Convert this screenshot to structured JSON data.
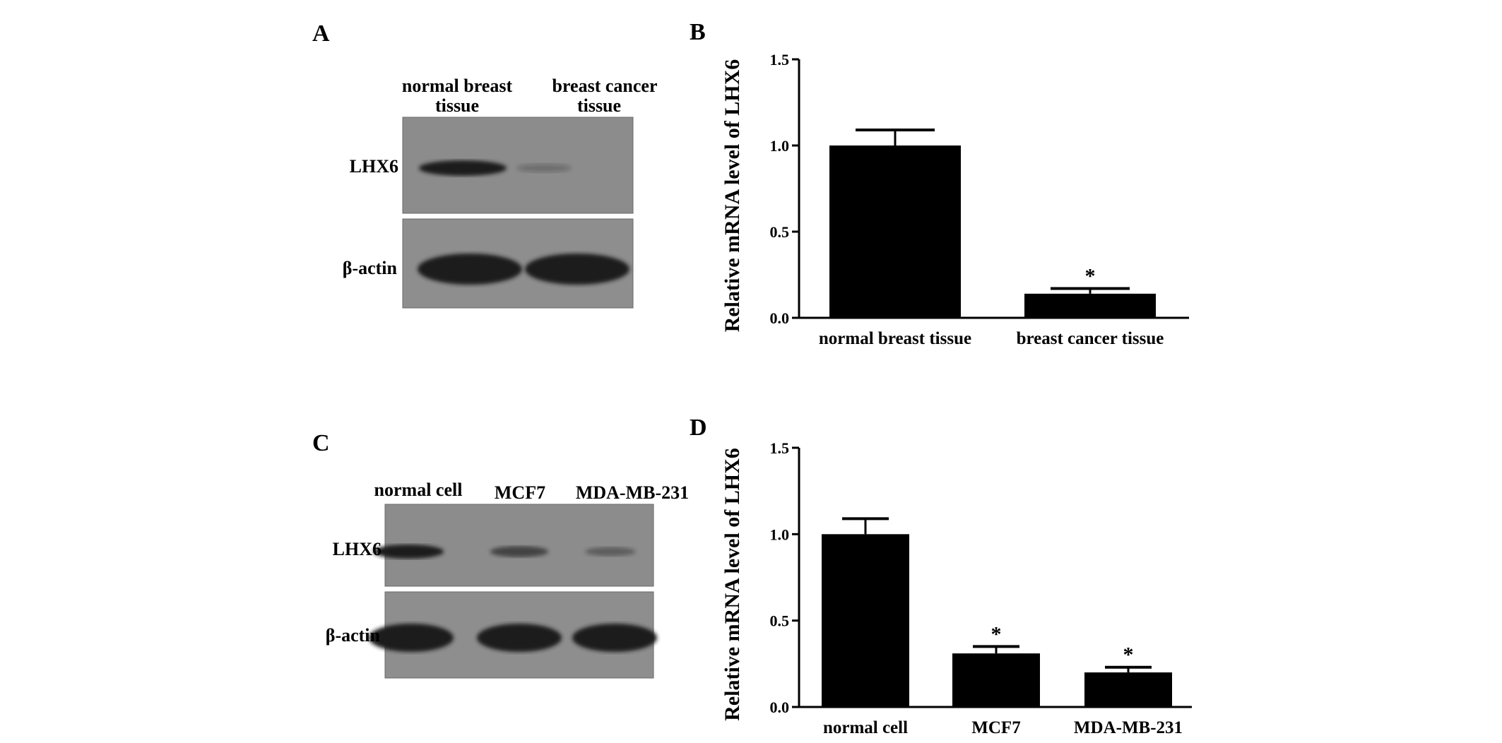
{
  "panels": {
    "A": {
      "letter": "A",
      "lanes": [
        {
          "line1": "normal breast",
          "line2": "tissue"
        },
        {
          "line1": "breast cancer",
          "line2": "tissue"
        }
      ],
      "rows": [
        "LHX6",
        "β-actin"
      ],
      "band_intensity": {
        "LHX6": [
          1.0,
          0.15
        ],
        "β-actin": [
          1.0,
          1.0
        ]
      }
    },
    "B": {
      "letter": "B"
    },
    "C": {
      "letter": "C",
      "lanes": [
        {
          "line1": "normal cell"
        },
        {
          "line1": "MCF7"
        },
        {
          "line1": "MDA-MB-231"
        }
      ],
      "rows": [
        "LHX6",
        "β-actin"
      ],
      "band_intensity": {
        "LHX6": [
          1.0,
          0.6,
          0.35
        ],
        "β-actin": [
          1.0,
          1.0,
          1.0
        ]
      }
    },
    "D": {
      "letter": "D"
    }
  },
  "chart_data": [
    {
      "panel": "B",
      "type": "bar",
      "categories": [
        "normal breast tissue",
        "breast cancer tissue"
      ],
      "values": [
        1.0,
        0.14
      ],
      "errors": [
        0.09,
        0.03
      ],
      "significance": [
        "",
        "*"
      ],
      "ylabel": "Relative mRNA level of LHX6",
      "ylim": [
        0,
        1.5
      ],
      "yticks": [
        "0.0",
        "0.5",
        "1.0",
        "1.5"
      ],
      "bar_color": "#000000"
    },
    {
      "panel": "D",
      "type": "bar",
      "categories": [
        "normal cell",
        "MCF7",
        "MDA-MB-231"
      ],
      "values": [
        1.0,
        0.31,
        0.2
      ],
      "errors": [
        0.09,
        0.04,
        0.03
      ],
      "significance": [
        "",
        "*",
        "*"
      ],
      "ylabel": "Relative mRNA level of LHX6",
      "ylim": [
        0,
        1.5
      ],
      "yticks": [
        "0.0",
        "0.5",
        "1.0",
        "1.5"
      ],
      "bar_color": "#000000"
    }
  ]
}
